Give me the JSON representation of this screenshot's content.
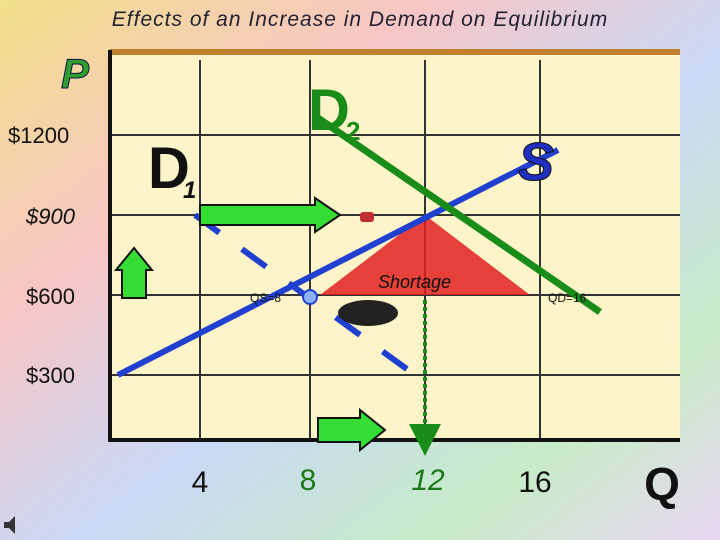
{
  "header": {
    "title": "Effects of an Increase in Demand on Equilibrium"
  },
  "axes": {
    "price": "P",
    "quantity": "Q"
  },
  "price_labels": [
    "$1200",
    "$900",
    "$600",
    "$300"
  ],
  "quantity_labels": [
    "4",
    "8",
    "12",
    "16"
  ],
  "curves": {
    "d1": {
      "letter": "D",
      "subscript": "1"
    },
    "d2": {
      "letter": "D",
      "subscript": "2"
    },
    "s": "S"
  },
  "annotations": {
    "shortage": "Shortage",
    "qs": "QS=8",
    "qd": "QD=16"
  }
}
